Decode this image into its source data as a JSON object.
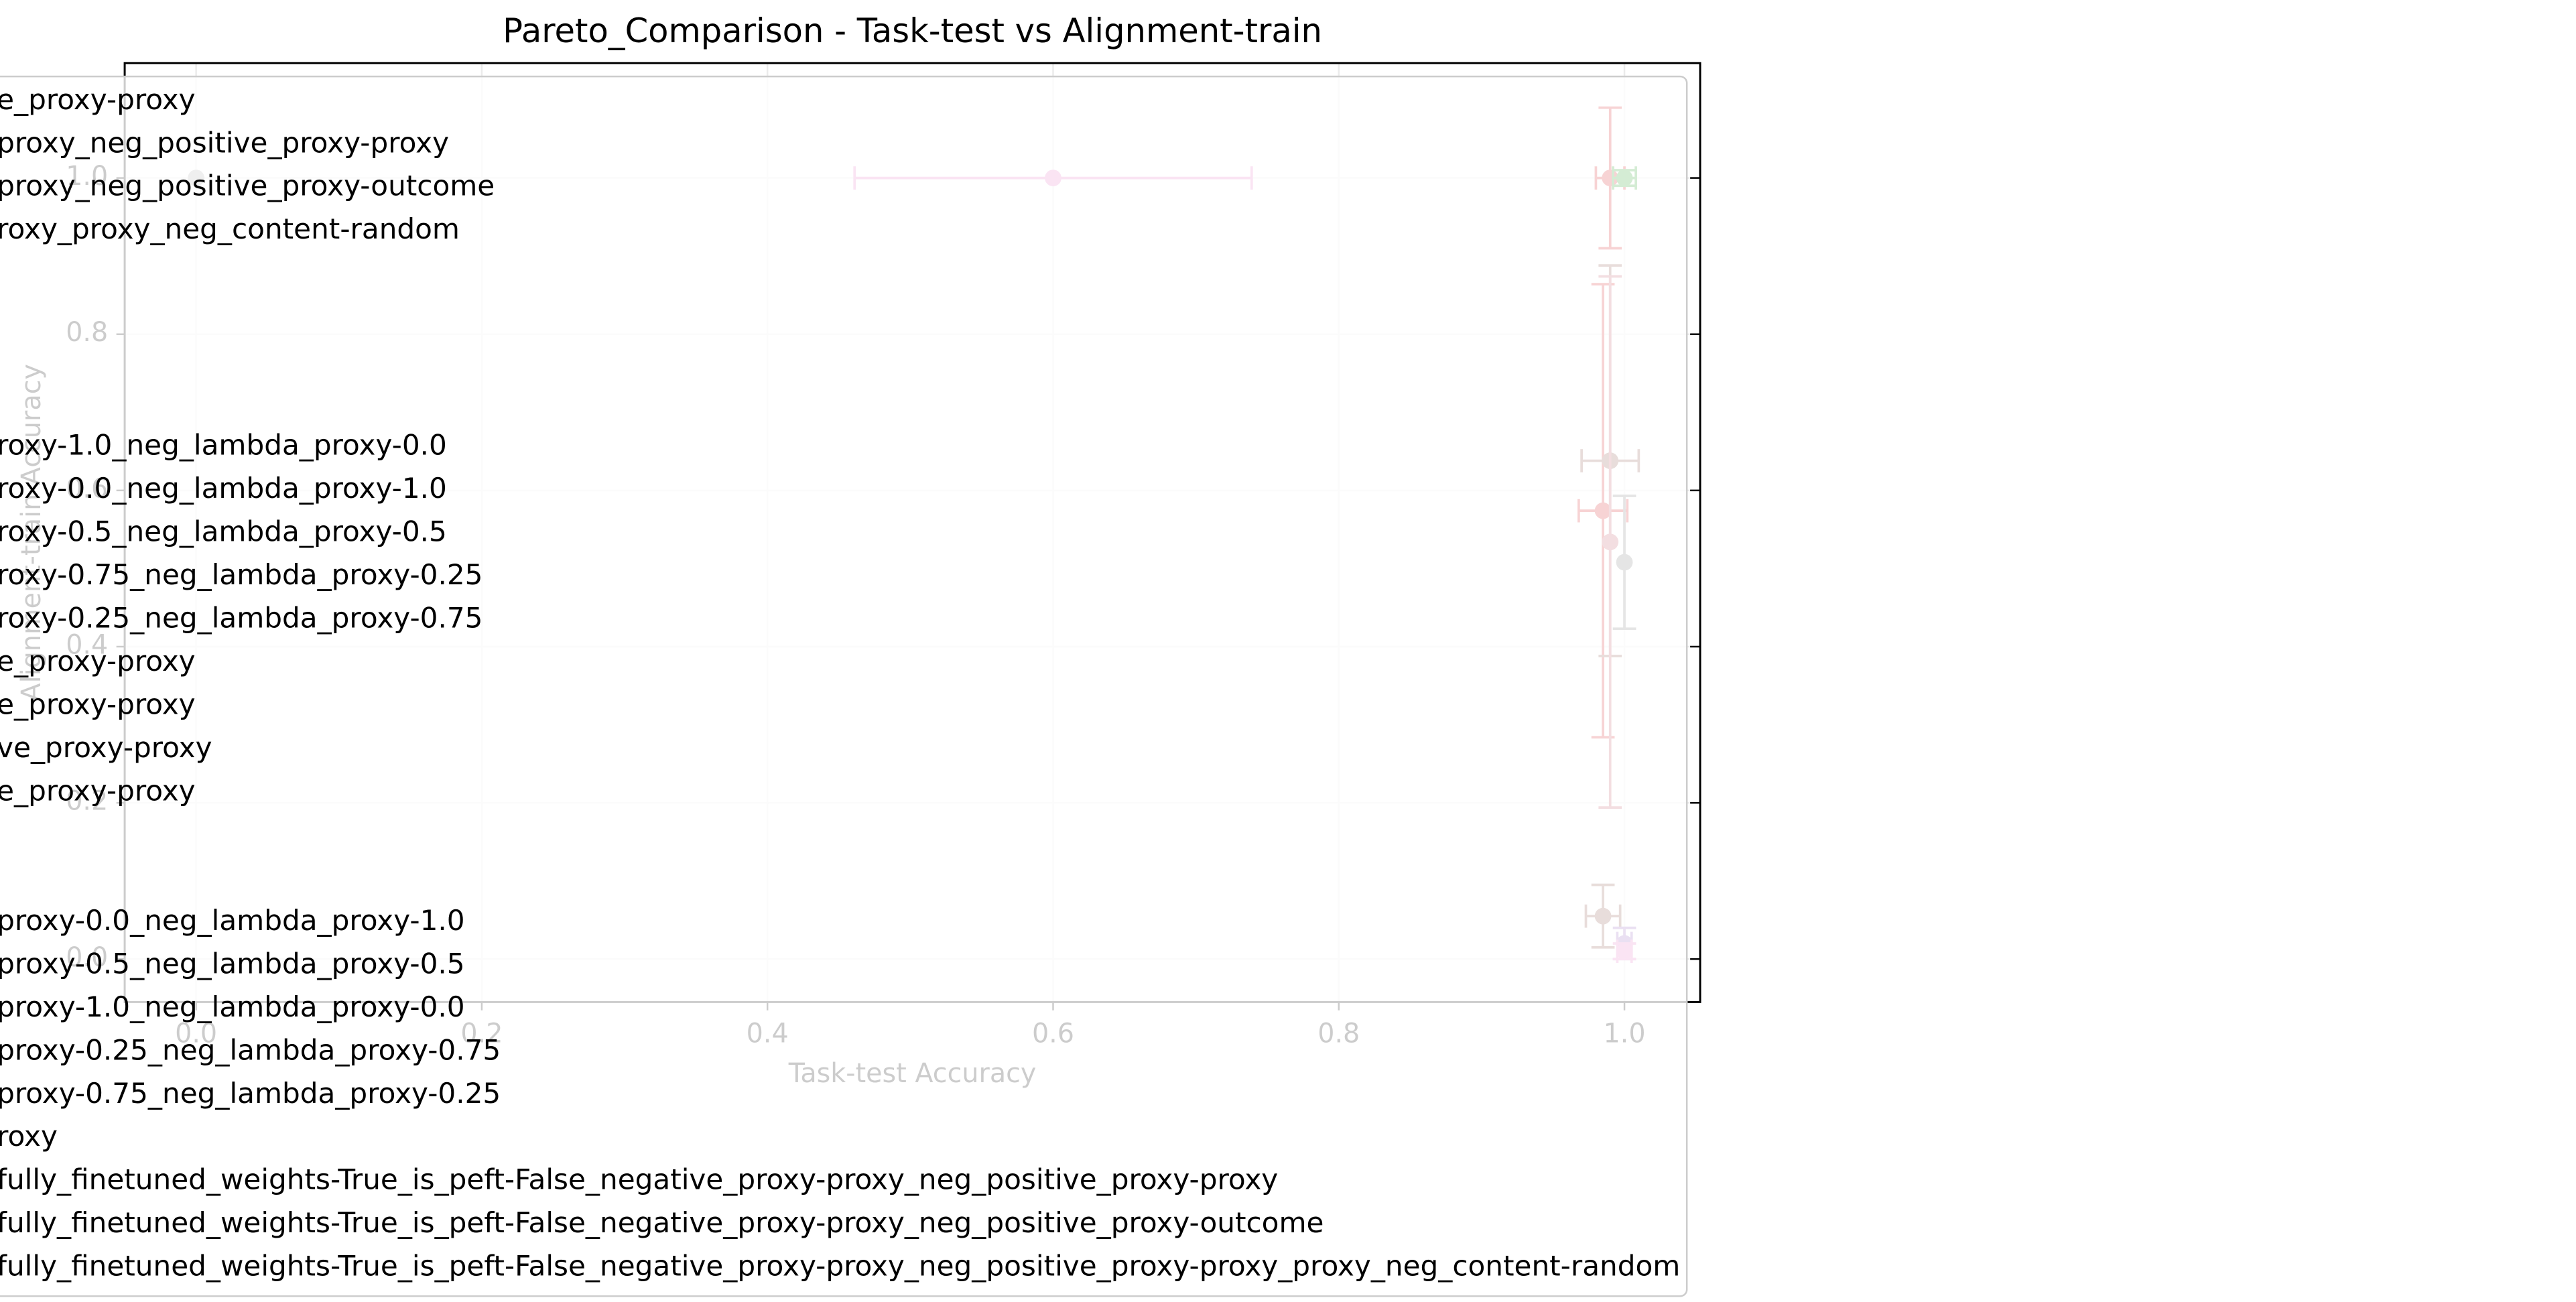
{
  "chart_data": {
    "type": "scatter",
    "title": "Pareto_Comparison - Task-test vs Alignment-train",
    "xlabel": "Task-test Accuracy",
    "ylabel": "Alignment-train Accuracy",
    "xlim": [
      -0.05,
      1.053
    ],
    "ylim": [
      -0.055,
      1.147
    ],
    "xticks": [
      {
        "value": 0,
        "label": "0.0"
      },
      {
        "value": 0.2,
        "label": "0.2"
      },
      {
        "value": 0.4,
        "label": "0.4"
      },
      {
        "value": 0.6,
        "label": "0.6"
      },
      {
        "value": 0.8,
        "label": "0.8"
      },
      {
        "value": 1,
        "label": "1.0"
      }
    ],
    "yticks": [
      {
        "value": 0,
        "label": "0.0"
      },
      {
        "value": 0.2,
        "label": "0.2"
      },
      {
        "value": 0.4,
        "label": "0.4"
      },
      {
        "value": 0.6,
        "label": "0.6"
      },
      {
        "value": 0.8,
        "label": "0.8"
      },
      {
        "value": 1,
        "label": "1.0"
      }
    ],
    "grid": true,
    "points": [
      {
        "x": 0.0,
        "y": 1.0,
        "xerr": 0.0,
        "yerr": 0.0,
        "color": "#b0b0b0"
      },
      {
        "x": 0.6,
        "y": 1.0,
        "xerr": 0.139,
        "yerr": 0.0,
        "color": "#e377c2"
      },
      {
        "x": 0.99,
        "y": 1.0,
        "xerr": 0.01,
        "yerr": 0.09,
        "color": "#d62728"
      },
      {
        "x": 1.0,
        "y": 1.0,
        "xerr": 0.008,
        "yerr": 0.01,
        "color": "#2ca02c"
      },
      {
        "x": 0.985,
        "y": 0.574,
        "xerr": 0.017,
        "yerr": 0.29,
        "color": "#d62728"
      },
      {
        "x": 0.99,
        "y": 0.638,
        "xerr": 0.02,
        "yerr": 0.25,
        "color": "#8c564b"
      },
      {
        "x": 0.99,
        "y": 0.534,
        "xerr": 0.0,
        "yerr": 0.34,
        "color": "#c25a6a"
      },
      {
        "x": 1.0,
        "y": 0.508,
        "xerr": 0.0,
        "yerr": 0.085,
        "color": "#7f7f7f"
      },
      {
        "x": 0.985,
        "y": 0.055,
        "xerr": 0.012,
        "yerr": 0.04,
        "color": "#8c564b"
      },
      {
        "x": 1.0,
        "y": 0.02,
        "xerr": 0.005,
        "yerr": 0.02,
        "color": "#9467bd"
      },
      {
        "x": 1.0,
        "y": 0.01,
        "xerr": 0.005,
        "yerr": 0.01,
        "color": "#e377c2"
      }
    ],
    "legend_entries": [
      "e_proxy-proxy",
      "proxy_neg_positive_proxy-proxy",
      "proxy_neg_positive_proxy-outcome",
      "roxy_proxy_neg_content-random",
      null,
      null,
      null,
      null,
      "roxy-1.0_neg_lambda_proxy-0.0",
      "roxy-0.0_neg_lambda_proxy-1.0",
      "roxy-0.5_neg_lambda_proxy-0.5",
      "roxy-0.75_neg_lambda_proxy-0.25",
      "roxy-0.25_neg_lambda_proxy-0.75",
      "e_proxy-proxy",
      "e_proxy-proxy",
      "ve_proxy-proxy",
      "e_proxy-proxy",
      null,
      null,
      "proxy-0.0_neg_lambda_proxy-1.0",
      "proxy-0.5_neg_lambda_proxy-0.5",
      "proxy-1.0_neg_lambda_proxy-0.0",
      "proxy-0.25_neg_lambda_proxy-0.75",
      "proxy-0.75_neg_lambda_proxy-0.25",
      "roxy",
      "fully_finetuned_weights-True_is_peft-False_negative_proxy-proxy_neg_positive_proxy-proxy",
      "fully_finetuned_weights-True_is_peft-False_negative_proxy-proxy_neg_positive_proxy-outcome",
      "fully_finetuned_weights-True_is_peft-False_negative_proxy-proxy_neg_positive_proxy-proxy_proxy_neg_content-random"
    ]
  }
}
